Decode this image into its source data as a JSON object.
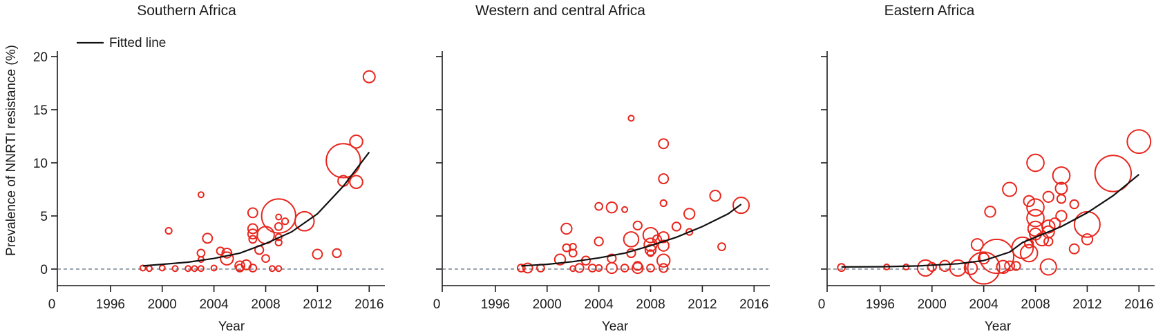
{
  "chart_data": [
    {
      "type": "scatter",
      "title": "Southern Africa",
      "xlabel": "Year",
      "ylabel": "Prevalence of NNRTI resistance (%)",
      "x_ticks": [
        "0",
        "1996",
        "2000",
        "2004",
        "2008",
        "2012",
        "2016"
      ],
      "y_ticks": [
        "0",
        "5",
        "10",
        "15",
        "20"
      ],
      "xlim": [
        1992,
        2017
      ],
      "ylim": [
        0,
        20
      ],
      "legend": {
        "label": "Fitted line",
        "position": "top-left"
      },
      "reference_line": {
        "y": 0,
        "style": "dashed"
      },
      "colors": {
        "points": "#e8261d",
        "fit": "#111111"
      },
      "fitted_line": [
        [
          1998.5,
          0.3
        ],
        [
          2000,
          0.45
        ],
        [
          2002,
          0.65
        ],
        [
          2004,
          1.0
        ],
        [
          2006,
          1.5
        ],
        [
          2008,
          2.4
        ],
        [
          2010,
          3.5
        ],
        [
          2012,
          5.2
        ],
        [
          2014,
          7.8
        ],
        [
          2016,
          11.0
        ]
      ],
      "points": [
        {
          "x": 1998.5,
          "y": 0.1,
          "r": 0.2
        },
        {
          "x": 1999,
          "y": 0.05,
          "r": 0.2
        },
        {
          "x": 2000,
          "y": 0.1,
          "r": 0.2
        },
        {
          "x": 2001,
          "y": 0.05,
          "r": 0.2
        },
        {
          "x": 2002,
          "y": 0.05,
          "r": 0.25
        },
        {
          "x": 2002.5,
          "y": 0.05,
          "r": 0.2
        },
        {
          "x": 2003,
          "y": 0.05,
          "r": 0.25
        },
        {
          "x": 2004,
          "y": 0.1,
          "r": 0.2
        },
        {
          "x": 2000.5,
          "y": 3.6,
          "r": 0.3
        },
        {
          "x": 2003,
          "y": 7.0,
          "r": 0.25
        },
        {
          "x": 2003,
          "y": 1.5,
          "r": 0.35
        },
        {
          "x": 2003,
          "y": 0.9,
          "r": 0.25
        },
        {
          "x": 2003.5,
          "y": 2.9,
          "r": 0.45
        },
        {
          "x": 2004.5,
          "y": 1.7,
          "r": 0.35
        },
        {
          "x": 2005,
          "y": 1.5,
          "r": 0.45
        },
        {
          "x": 2005,
          "y": 1.0,
          "r": 0.6
        },
        {
          "x": 2006,
          "y": 0.1,
          "r": 0.35
        },
        {
          "x": 2006,
          "y": 0.3,
          "r": 0.45
        },
        {
          "x": 2006.5,
          "y": 0.4,
          "r": 0.45
        },
        {
          "x": 2007,
          "y": 0.1,
          "r": 0.35
        },
        {
          "x": 2007,
          "y": 5.3,
          "r": 0.45
        },
        {
          "x": 2007,
          "y": 3.8,
          "r": 0.45
        },
        {
          "x": 2007,
          "y": 3.3,
          "r": 0.45
        },
        {
          "x": 2007,
          "y": 2.8,
          "r": 0.35
        },
        {
          "x": 2007.5,
          "y": 1.8,
          "r": 0.4
        },
        {
          "x": 2008,
          "y": 1.0,
          "r": 0.35
        },
        {
          "x": 2008,
          "y": 3.2,
          "r": 0.8
        },
        {
          "x": 2008.5,
          "y": 0.05,
          "r": 0.25
        },
        {
          "x": 2009,
          "y": 0.05,
          "r": 0.25
        },
        {
          "x": 2009,
          "y": 4.0,
          "r": 0.35
        },
        {
          "x": 2009,
          "y": 3.0,
          "r": 0.3
        },
        {
          "x": 2009,
          "y": 2.5,
          "r": 0.3
        },
        {
          "x": 2009,
          "y": 4.9,
          "r": 0.25
        },
        {
          "x": 2009,
          "y": 5.0,
          "r": 1.6
        },
        {
          "x": 2009.5,
          "y": 4.5,
          "r": 0.3
        },
        {
          "x": 2011,
          "y": 4.5,
          "r": 0.9
        },
        {
          "x": 2012,
          "y": 1.4,
          "r": 0.45
        },
        {
          "x": 2013.5,
          "y": 1.5,
          "r": 0.4
        },
        {
          "x": 2014,
          "y": 8.3,
          "r": 0.5
        },
        {
          "x": 2014,
          "y": 10.2,
          "r": 1.6
        },
        {
          "x": 2015,
          "y": 12.0,
          "r": 0.6
        },
        {
          "x": 2015,
          "y": 8.2,
          "r": 0.6
        },
        {
          "x": 2016,
          "y": 18.1,
          "r": 0.55
        }
      ]
    },
    {
      "type": "scatter",
      "title": "Western and central Africa",
      "xlabel": "Year",
      "ylabel": "",
      "x_ticks": [
        "0",
        "1996",
        "2000",
        "2004",
        "2008",
        "2012",
        "2016"
      ],
      "y_ticks": [
        "",
        "",
        "",
        "",
        ""
      ],
      "xlim": [
        1992,
        2017
      ],
      "ylim": [
        0,
        20
      ],
      "reference_line": {
        "y": 0,
        "style": "dashed"
      },
      "colors": {
        "points": "#e8261d",
        "fit": "#111111"
      },
      "fitted_line": [
        [
          1998,
          0.3
        ],
        [
          2000,
          0.45
        ],
        [
          2002,
          0.7
        ],
        [
          2004,
          1.05
        ],
        [
          2006,
          1.5
        ],
        [
          2008,
          2.2
        ],
        [
          2010,
          3.0
        ],
        [
          2012,
          4.0
        ],
        [
          2014,
          5.2
        ],
        [
          2015,
          6.1
        ]
      ],
      "points": [
        {
          "x": 1998,
          "y": 0.1,
          "r": 0.35
        },
        {
          "x": 1998.5,
          "y": 0.1,
          "r": 0.45
        },
        {
          "x": 1999.5,
          "y": 0.1,
          "r": 0.35
        },
        {
          "x": 2001,
          "y": 0.9,
          "r": 0.5
        },
        {
          "x": 2001.5,
          "y": 3.8,
          "r": 0.5
        },
        {
          "x": 2001.5,
          "y": 2.0,
          "r": 0.35
        },
        {
          "x": 2002,
          "y": 1.5,
          "r": 0.35
        },
        {
          "x": 2002,
          "y": 2.1,
          "r": 0.3
        },
        {
          "x": 2002,
          "y": 0.05,
          "r": 0.25
        },
        {
          "x": 2002.5,
          "y": 0.1,
          "r": 0.4
        },
        {
          "x": 2003,
          "y": 0.8,
          "r": 0.4
        },
        {
          "x": 2003.5,
          "y": 0.1,
          "r": 0.35
        },
        {
          "x": 2004,
          "y": 0.1,
          "r": 0.3
        },
        {
          "x": 2004,
          "y": 2.6,
          "r": 0.4
        },
        {
          "x": 2004,
          "y": 5.9,
          "r": 0.35
        },
        {
          "x": 2005,
          "y": 5.8,
          "r": 0.5
        },
        {
          "x": 2005,
          "y": 0.1,
          "r": 0.5
        },
        {
          "x": 2005,
          "y": 1.0,
          "r": 0.4
        },
        {
          "x": 2006,
          "y": 0.1,
          "r": 0.35
        },
        {
          "x": 2006,
          "y": 5.6,
          "r": 0.2
        },
        {
          "x": 2006.5,
          "y": 14.2,
          "r": 0.25
        },
        {
          "x": 2006.5,
          "y": 2.8,
          "r": 0.7
        },
        {
          "x": 2006.5,
          "y": 1.5,
          "r": 0.4
        },
        {
          "x": 2007,
          "y": 0.1,
          "r": 0.5
        },
        {
          "x": 2007,
          "y": 0.3,
          "r": 0.4
        },
        {
          "x": 2007,
          "y": 4.1,
          "r": 0.4
        },
        {
          "x": 2008,
          "y": 3.2,
          "r": 0.7
        },
        {
          "x": 2008,
          "y": 2.3,
          "r": 0.6
        },
        {
          "x": 2008,
          "y": 1.8,
          "r": 0.5
        },
        {
          "x": 2008,
          "y": 1.5,
          "r": 0.3
        },
        {
          "x": 2008,
          "y": 0.1,
          "r": 0.35
        },
        {
          "x": 2008.5,
          "y": 2.8,
          "r": 0.4
        },
        {
          "x": 2009,
          "y": 11.8,
          "r": 0.45
        },
        {
          "x": 2009,
          "y": 8.5,
          "r": 0.45
        },
        {
          "x": 2009,
          "y": 6.2,
          "r": 0.3
        },
        {
          "x": 2009,
          "y": 3.0,
          "r": 0.5
        },
        {
          "x": 2009,
          "y": 2.2,
          "r": 0.5
        },
        {
          "x": 2009,
          "y": 0.8,
          "r": 0.6
        },
        {
          "x": 2009,
          "y": 0.1,
          "r": 0.4
        },
        {
          "x": 2010,
          "y": 4.0,
          "r": 0.4
        },
        {
          "x": 2011,
          "y": 5.2,
          "r": 0.5
        },
        {
          "x": 2011,
          "y": 3.5,
          "r": 0.3
        },
        {
          "x": 2013,
          "y": 6.9,
          "r": 0.5
        },
        {
          "x": 2013.5,
          "y": 2.1,
          "r": 0.35
        },
        {
          "x": 2015,
          "y": 6.0,
          "r": 0.75
        }
      ]
    },
    {
      "type": "scatter",
      "title": "Eastern Africa",
      "xlabel": "Year",
      "ylabel": "",
      "x_ticks": [
        "0",
        "1996",
        "2000",
        "2004",
        "2008",
        "2012",
        "2016"
      ],
      "y_ticks": [
        "",
        "",
        "",
        "",
        ""
      ],
      "xlim": [
        1992,
        2017
      ],
      "ylim": [
        0,
        20
      ],
      "reference_line": {
        "y": 0,
        "style": "dashed"
      },
      "colors": {
        "points": "#e8261d",
        "fit": "#111111"
      },
      "fitted_line": [
        [
          1993,
          0.2
        ],
        [
          1996,
          0.22
        ],
        [
          1999,
          0.3
        ],
        [
          2002,
          0.5
        ],
        [
          2004,
          0.8
        ],
        [
          2006,
          1.6
        ],
        [
          2007,
          2.5
        ],
        [
          2008,
          3.0
        ],
        [
          2010,
          4.0
        ],
        [
          2012,
          5.3
        ],
        [
          2014,
          6.9
        ],
        [
          2016,
          8.9
        ]
      ],
      "points": [
        {
          "x": 1993,
          "y": 0.15,
          "r": 0.35
        },
        {
          "x": 1996.5,
          "y": 0.2,
          "r": 0.2
        },
        {
          "x": 1998,
          "y": 0.2,
          "r": 0.2
        },
        {
          "x": 1999.5,
          "y": 0.1,
          "r": 0.75
        },
        {
          "x": 2000,
          "y": 0.2,
          "r": 0.4
        },
        {
          "x": 2001,
          "y": 0.3,
          "r": 0.5
        },
        {
          "x": 2002,
          "y": 0.1,
          "r": 0.75
        },
        {
          "x": 2003,
          "y": 0.1,
          "r": 0.6
        },
        {
          "x": 2003.5,
          "y": 2.3,
          "r": 0.55
        },
        {
          "x": 2004,
          "y": 1.0,
          "r": 0.5
        },
        {
          "x": 2004,
          "y": 0.1,
          "r": 1.5
        },
        {
          "x": 2004.5,
          "y": 5.4,
          "r": 0.5
        },
        {
          "x": 2005,
          "y": 1.2,
          "r": 1.6
        },
        {
          "x": 2005.5,
          "y": 0.2,
          "r": 0.6
        },
        {
          "x": 2006,
          "y": 0.3,
          "r": 0.45
        },
        {
          "x": 2006,
          "y": 7.5,
          "r": 0.65
        },
        {
          "x": 2006.5,
          "y": 0.3,
          "r": 0.4
        },
        {
          "x": 2007,
          "y": 2.0,
          "r": 1.0
        },
        {
          "x": 2007.5,
          "y": 1.5,
          "r": 0.8
        },
        {
          "x": 2007.5,
          "y": 6.4,
          "r": 0.5
        },
        {
          "x": 2007.5,
          "y": 2.4,
          "r": 0.4
        },
        {
          "x": 2008,
          "y": 10.0,
          "r": 0.8
        },
        {
          "x": 2008,
          "y": 5.8,
          "r": 0.8
        },
        {
          "x": 2008,
          "y": 4.8,
          "r": 0.8
        },
        {
          "x": 2008,
          "y": 3.8,
          "r": 0.7
        },
        {
          "x": 2008,
          "y": 3.3,
          "r": 0.55
        },
        {
          "x": 2008.5,
          "y": 2.8,
          "r": 0.6
        },
        {
          "x": 2009,
          "y": 6.8,
          "r": 0.5
        },
        {
          "x": 2009,
          "y": 4.0,
          "r": 0.6
        },
        {
          "x": 2009,
          "y": 3.5,
          "r": 0.55
        },
        {
          "x": 2009,
          "y": 2.6,
          "r": 0.4
        },
        {
          "x": 2009,
          "y": 0.2,
          "r": 0.75
        },
        {
          "x": 2009.5,
          "y": 4.3,
          "r": 0.5
        },
        {
          "x": 2010,
          "y": 8.8,
          "r": 0.8
        },
        {
          "x": 2010,
          "y": 7.6,
          "r": 0.55
        },
        {
          "x": 2010,
          "y": 6.6,
          "r": 0.4
        },
        {
          "x": 2010,
          "y": 5.0,
          "r": 0.5
        },
        {
          "x": 2011,
          "y": 6.1,
          "r": 0.4
        },
        {
          "x": 2011,
          "y": 1.9,
          "r": 0.45
        },
        {
          "x": 2012,
          "y": 2.8,
          "r": 0.5
        },
        {
          "x": 2012,
          "y": 4.2,
          "r": 1.2
        },
        {
          "x": 2014,
          "y": 9.0,
          "r": 1.7
        },
        {
          "x": 2016,
          "y": 12.0,
          "r": 1.1
        }
      ]
    }
  ]
}
